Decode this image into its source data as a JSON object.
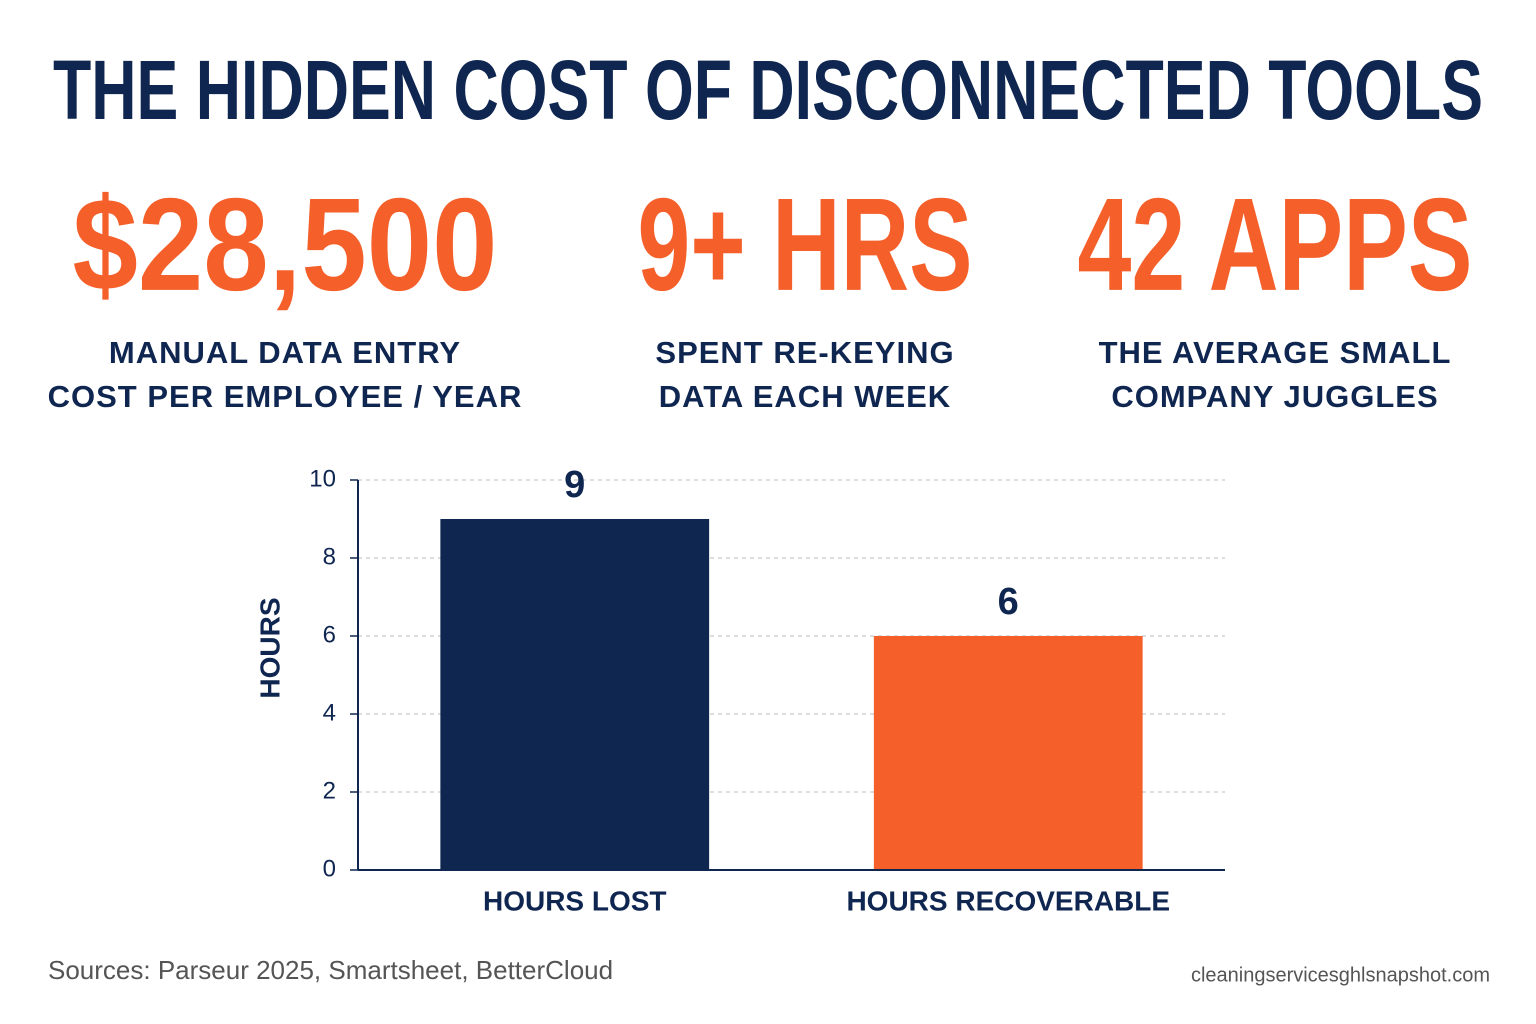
{
  "header": {
    "title": "THE HIDDEN COST OF DISCONNECTED TOOLS"
  },
  "stats": [
    {
      "value": "$28,500",
      "lines": [
        "MANUAL DATA ENTRY",
        "COST PER EMPLOYEE / YEAR"
      ]
    },
    {
      "value": "9+ HRS",
      "lines": [
        "SPENT RE-KEYING",
        "DATA EACH WEEK"
      ]
    },
    {
      "value": "42 APPS",
      "lines": [
        "THE AVERAGE SMALL",
        "COMPANY JUGGLES"
      ]
    }
  ],
  "chart_data": {
    "type": "bar",
    "categories": [
      "HOURS LOST",
      "HOURS RECOVERABLE"
    ],
    "values": [
      9,
      6
    ],
    "colors": [
      "#0f2650",
      "#f55f2a"
    ],
    "ylabel": "HOURS",
    "ylim": [
      0,
      10
    ],
    "yticks": [
      0,
      2,
      4,
      6,
      8,
      10
    ],
    "grid": true
  },
  "footer": {
    "sources": "Sources: Parseur 2025, Smartsheet, BetterCloud",
    "watermark": "cleaningservicesghlsnapshot.com"
  }
}
